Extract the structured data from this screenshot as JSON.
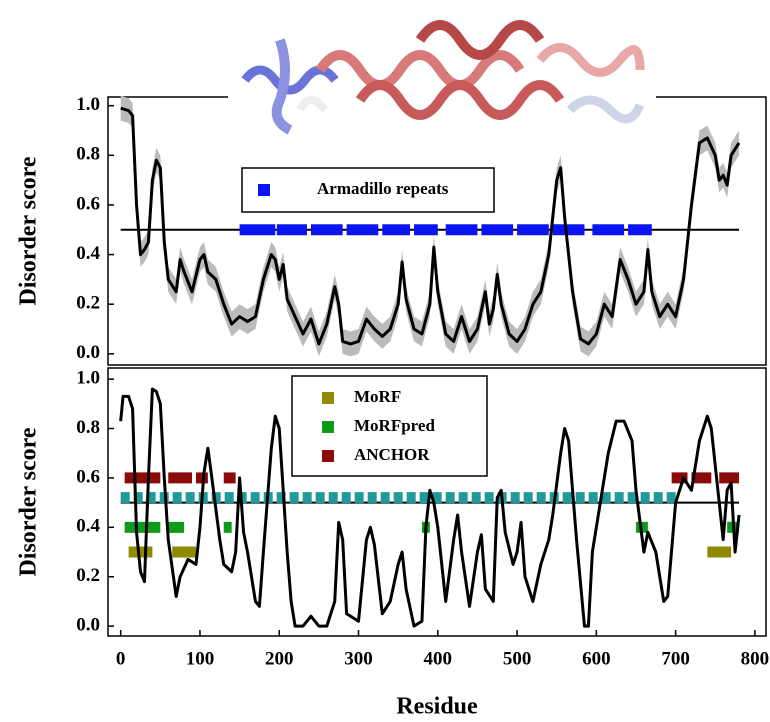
{
  "chart_data": [
    {
      "type": "line",
      "ylabel": "Disorder score",
      "xlim": [
        -16,
        814
      ],
      "ylim": [
        -0.045,
        1.035
      ],
      "yticks": [
        {
          "value": 0,
          "label": "0.0"
        },
        0.2,
        0.4,
        0.6,
        0.8,
        {
          "value": 1,
          "label": "1.0"
        }
      ],
      "threshold": 0.5,
      "color": "#000000",
      "band_color": "#bbbbbb",
      "error": 0.05,
      "x": [
        0,
        10,
        15,
        20,
        25,
        30,
        35,
        40,
        45,
        50,
        55,
        60,
        70,
        75,
        80,
        90,
        100,
        105,
        110,
        120,
        130,
        140,
        150,
        160,
        170,
        180,
        190,
        195,
        200,
        205,
        210,
        220,
        230,
        240,
        250,
        260,
        270,
        275,
        280,
        290,
        300,
        310,
        320,
        330,
        340,
        350,
        355,
        360,
        370,
        380,
        390,
        395,
        400,
        410,
        420,
        430,
        440,
        450,
        460,
        465,
        470,
        475,
        480,
        490,
        500,
        510,
        520,
        530,
        540,
        550,
        555,
        560,
        570,
        580,
        590,
        600,
        610,
        620,
        630,
        640,
        650,
        660,
        665,
        670,
        680,
        690,
        700,
        710,
        720,
        730,
        740,
        750,
        755,
        760,
        765,
        770,
        780
      ],
      "values": [
        0.99,
        0.98,
        0.96,
        0.6,
        0.4,
        0.42,
        0.45,
        0.7,
        0.78,
        0.75,
        0.45,
        0.3,
        0.25,
        0.38,
        0.33,
        0.25,
        0.38,
        0.4,
        0.33,
        0.3,
        0.2,
        0.12,
        0.15,
        0.13,
        0.15,
        0.3,
        0.4,
        0.38,
        0.3,
        0.36,
        0.22,
        0.15,
        0.08,
        0.14,
        0.04,
        0.12,
        0.27,
        0.2,
        0.05,
        0.04,
        0.05,
        0.14,
        0.1,
        0.07,
        0.1,
        0.2,
        0.37,
        0.22,
        0.1,
        0.08,
        0.2,
        0.43,
        0.25,
        0.08,
        0.05,
        0.15,
        0.05,
        0.1,
        0.25,
        0.12,
        0.18,
        0.32,
        0.2,
        0.08,
        0.05,
        0.1,
        0.2,
        0.25,
        0.4,
        0.7,
        0.75,
        0.55,
        0.25,
        0.06,
        0.04,
        0.08,
        0.2,
        0.15,
        0.38,
        0.3,
        0.2,
        0.25,
        0.42,
        0.25,
        0.15,
        0.2,
        0.15,
        0.3,
        0.6,
        0.85,
        0.87,
        0.8,
        0.7,
        0.72,
        0.68,
        0.8,
        0.85
      ],
      "bars": [
        {
          "name": "Armadillo repeats",
          "color": "#0a14f0",
          "level": 0.5,
          "segments": [
            [
              150,
              195
            ],
            [
              197,
              235
            ],
            [
              240,
              280
            ],
            [
              285,
              325
            ],
            [
              330,
              365
            ],
            [
              370,
              400
            ],
            [
              410,
              450
            ],
            [
              455,
              495
            ],
            [
              500,
              540
            ],
            [
              545,
              585
            ],
            [
              595,
              635
            ],
            [
              640,
              670
            ]
          ]
        }
      ]
    },
    {
      "type": "line",
      "ylabel": "Disorder score",
      "xlabel": "Residue",
      "xlim": [
        -16,
        814
      ],
      "ylim": [
        -0.04,
        1.045
      ],
      "xticks": [
        0,
        100,
        200,
        300,
        400,
        500,
        600,
        700,
        800
      ],
      "yticks": [
        {
          "value": 0,
          "label": "0.0"
        },
        0.2,
        0.4,
        0.6,
        0.8,
        {
          "value": 1,
          "label": "1.0"
        }
      ],
      "threshold": 0.5,
      "color": "#000000",
      "x": [
        0,
        3,
        10,
        15,
        20,
        25,
        30,
        35,
        40,
        45,
        50,
        55,
        60,
        70,
        75,
        85,
        95,
        100,
        105,
        110,
        115,
        125,
        130,
        140,
        145,
        150,
        155,
        160,
        170,
        175,
        180,
        190,
        195,
        200,
        205,
        210,
        215,
        220,
        230,
        240,
        250,
        260,
        270,
        275,
        280,
        285,
        300,
        310,
        315,
        320,
        330,
        340,
        350,
        355,
        360,
        370,
        380,
        385,
        390,
        395,
        400,
        410,
        420,
        425,
        430,
        440,
        450,
        455,
        460,
        470,
        475,
        480,
        485,
        495,
        500,
        505,
        510,
        520,
        530,
        540,
        545,
        555,
        560,
        565,
        575,
        585,
        590,
        595,
        605,
        615,
        625,
        635,
        645,
        650,
        660,
        665,
        675,
        685,
        690,
        700,
        710,
        720,
        730,
        740,
        745,
        755,
        760,
        765,
        770,
        775,
        780
      ],
      "values": [
        0.83,
        0.93,
        0.93,
        0.88,
        0.38,
        0.22,
        0.18,
        0.6,
        0.96,
        0.95,
        0.9,
        0.6,
        0.35,
        0.12,
        0.2,
        0.27,
        0.25,
        0.4,
        0.62,
        0.72,
        0.6,
        0.35,
        0.25,
        0.22,
        0.3,
        0.6,
        0.38,
        0.3,
        0.1,
        0.08,
        0.3,
        0.72,
        0.85,
        0.8,
        0.55,
        0.3,
        0.1,
        0,
        0,
        0.04,
        0,
        0,
        0.1,
        0.42,
        0.35,
        0.05,
        0.02,
        0.35,
        0.4,
        0.33,
        0.05,
        0.1,
        0.25,
        0.3,
        0.15,
        0,
        0.02,
        0.4,
        0.55,
        0.5,
        0.4,
        0.1,
        0.35,
        0.45,
        0.3,
        0.08,
        0.3,
        0.37,
        0.15,
        0.1,
        0.52,
        0.55,
        0.38,
        0.25,
        0.3,
        0.42,
        0.2,
        0.1,
        0.25,
        0.35,
        0.45,
        0.7,
        0.8,
        0.75,
        0.35,
        0,
        0,
        0.3,
        0.5,
        0.7,
        0.83,
        0.83,
        0.75,
        0.55,
        0.3,
        0.38,
        0.3,
        0.1,
        0.12,
        0.5,
        0.6,
        0.55,
        0.75,
        0.85,
        0.8,
        0.5,
        0.35,
        0.55,
        0.58,
        0.3,
        0.45
      ],
      "bars": [
        {
          "color": "#1f9a9a",
          "level": 0.52,
          "dashed": true,
          "segments": [
            [
              0,
              700
            ]
          ]
        },
        {
          "name": "MoRF",
          "color": "#8f8a00",
          "level": 0.3,
          "segments": [
            [
              10,
              40
            ],
            [
              65,
              95
            ],
            [
              740,
              770
            ]
          ]
        },
        {
          "name": "MoRFpred",
          "color": "#0f9a1a",
          "level": 0.4,
          "segments": [
            [
              5,
              50
            ],
            [
              60,
              80
            ],
            [
              130,
              140
            ],
            [
              380,
              390
            ],
            [
              650,
              665
            ],
            [
              765,
              780
            ]
          ]
        },
        {
          "name": "ANCHOR",
          "color": "#8b0a0a",
          "level": 0.6,
          "segments": [
            [
              5,
              50
            ],
            [
              60,
              90
            ],
            [
              95,
              110
            ],
            [
              130,
              145
            ],
            [
              695,
              715
            ],
            [
              720,
              745
            ],
            [
              755,
              780
            ]
          ]
        }
      ]
    }
  ]
}
